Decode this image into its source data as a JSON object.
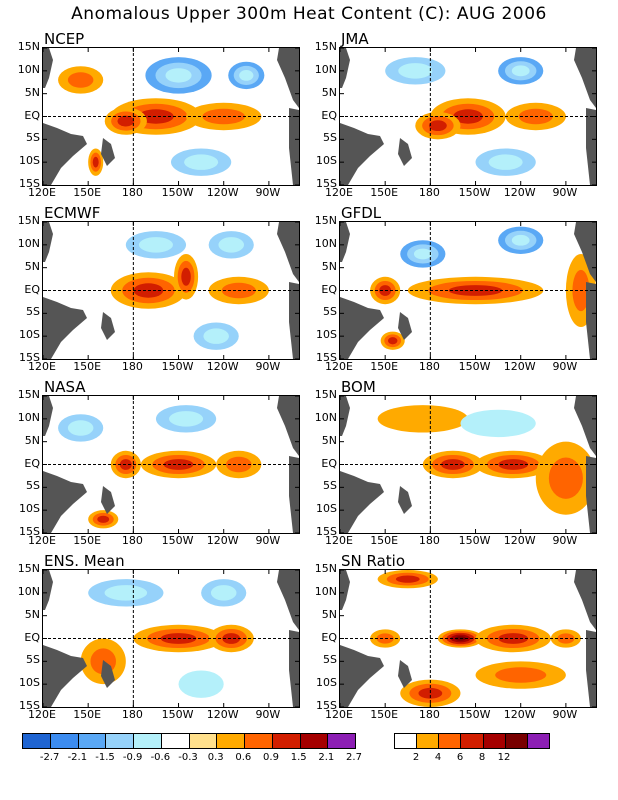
{
  "title": "Anomalous Upper 300m Heat Content (C): AUG 2006",
  "lat_labels": [
    "15N",
    "10N",
    "5N",
    "EQ",
    "5S",
    "10S",
    "15S"
  ],
  "lon_labels": [
    "120E",
    "150E",
    "180",
    "150W",
    "120W",
    "90W"
  ],
  "panels": [
    {
      "name": "NCEP",
      "row": 0,
      "col": 0
    },
    {
      "name": "JMA",
      "row": 0,
      "col": 1
    },
    {
      "name": "ECMWF",
      "row": 1,
      "col": 0
    },
    {
      "name": "GFDL",
      "row": 1,
      "col": 1
    },
    {
      "name": "NASA",
      "row": 2,
      "col": 0
    },
    {
      "name": "BOM",
      "row": 2,
      "col": 1
    },
    {
      "name": "ENS. Mean",
      "row": 3,
      "col": 0
    },
    {
      "name": "SN Ratio",
      "row": 3,
      "col": 1
    }
  ],
  "colors": {
    "land": "#555555",
    "anomaly_palette": [
      "#1e64d2",
      "#3c8cf0",
      "#5aa8f5",
      "#96d2fa",
      "#b4f0fa",
      "#ffffff",
      "#ffe08c",
      "#ffaa00",
      "#ff6400",
      "#d21e00",
      "#a50000",
      "#8c1eb4"
    ],
    "sn_palette": [
      "#ffffff",
      "#ffaa00",
      "#ff6400",
      "#d21e00",
      "#a50000",
      "#780000",
      "#8c1eb4"
    ]
  },
  "colorbar_anomaly": {
    "labels": [
      "-2.7",
      "-2.1",
      "-1.5",
      "-0.9",
      "-0.6",
      "-0.3",
      "0.3",
      "0.6",
      "0.9",
      "1.5",
      "2.1",
      "2.7"
    ]
  },
  "colorbar_sn": {
    "labels": [
      "2",
      "4",
      "6",
      "8",
      "12"
    ]
  },
  "chart_data": {
    "type": "heatmap",
    "variable": "Anomalous Upper 300m Heat Content (C)",
    "period": "AUG 2006",
    "lat_range": [
      -15,
      15
    ],
    "lon_range_deg_east": [
      120,
      290
    ],
    "contour_levels": [
      -2.7,
      -2.1,
      -1.5,
      -0.9,
      -0.6,
      -0.3,
      0.3,
      0.6,
      0.9,
      1.5,
      2.1,
      2.7
    ],
    "sn_levels": [
      2,
      4,
      6,
      8,
      12
    ],
    "features": {
      "NCEP": [
        {
          "lon": 195,
          "lat": 0,
          "value": 1.2,
          "rx": 30,
          "ry": 4
        },
        {
          "lon": 175,
          "lat": -1,
          "value": 1.0,
          "rx": 14,
          "ry": 3
        },
        {
          "lon": 240,
          "lat": 0,
          "value": 0.6,
          "rx": 25,
          "ry": 3
        },
        {
          "lon": 155,
          "lat": -10,
          "value": 1.2,
          "rx": 5,
          "ry": 3
        },
        {
          "lon": 210,
          "lat": 9,
          "value": -0.9,
          "rx": 22,
          "ry": 4
        },
        {
          "lon": 255,
          "lat": 9,
          "value": -0.9,
          "rx": 12,
          "ry": 3
        },
        {
          "lon": 145,
          "lat": 8,
          "value": 0.6,
          "rx": 15,
          "ry": 3
        },
        {
          "lon": 225,
          "lat": -10,
          "value": -0.6,
          "rx": 20,
          "ry": 3
        }
      ],
      "JMA": [
        {
          "lon": 205,
          "lat": 0,
          "value": 1.2,
          "rx": 25,
          "ry": 4
        },
        {
          "lon": 185,
          "lat": -2,
          "value": 0.9,
          "rx": 15,
          "ry": 3
        },
        {
          "lon": 250,
          "lat": 0,
          "value": 0.6,
          "rx": 20,
          "ry": 3
        },
        {
          "lon": 170,
          "lat": 10,
          "value": -0.6,
          "rx": 20,
          "ry": 3
        },
        {
          "lon": 240,
          "lat": 10,
          "value": -0.9,
          "rx": 15,
          "ry": 3
        },
        {
          "lon": 230,
          "lat": -10,
          "value": -0.6,
          "rx": 20,
          "ry": 3
        }
      ],
      "ECMWF": [
        {
          "lon": 190,
          "lat": 0,
          "value": 1.2,
          "rx": 25,
          "ry": 4
        },
        {
          "lon": 215,
          "lat": 3,
          "value": 0.9,
          "rx": 8,
          "ry": 5
        },
        {
          "lon": 250,
          "lat": 0,
          "value": 0.6,
          "rx": 20,
          "ry": 3
        },
        {
          "lon": 195,
          "lat": 10,
          "value": -0.6,
          "rx": 20,
          "ry": 3
        },
        {
          "lon": 245,
          "lat": 10,
          "value": -0.6,
          "rx": 15,
          "ry": 3
        },
        {
          "lon": 235,
          "lat": -10,
          "value": -0.6,
          "rx": 15,
          "ry": 3
        }
      ],
      "GFDL": [
        {
          "lon": 210,
          "lat": 0,
          "value": 1.2,
          "rx": 45,
          "ry": 3
        },
        {
          "lon": 150,
          "lat": 0,
          "value": 0.9,
          "rx": 10,
          "ry": 3
        },
        {
          "lon": 155,
          "lat": -11,
          "value": 1.2,
          "rx": 8,
          "ry": 2
        },
        {
          "lon": 175,
          "lat": 8,
          "value": -0.9,
          "rx": 15,
          "ry": 3
        },
        {
          "lon": 240,
          "lat": 11,
          "value": -0.9,
          "rx": 15,
          "ry": 3
        },
        {
          "lon": 280,
          "lat": 0,
          "value": 0.6,
          "rx": 10,
          "ry": 8
        }
      ],
      "NASA": [
        {
          "lon": 210,
          "lat": 0,
          "value": 1.2,
          "rx": 25,
          "ry": 3
        },
        {
          "lon": 175,
          "lat": 0,
          "value": 0.9,
          "rx": 10,
          "ry": 3
        },
        {
          "lon": 160,
          "lat": -12,
          "value": 0.9,
          "rx": 10,
          "ry": 2
        },
        {
          "lon": 145,
          "lat": 8,
          "value": -0.6,
          "rx": 15,
          "ry": 3
        },
        {
          "lon": 215,
          "lat": 10,
          "value": -0.6,
          "rx": 20,
          "ry": 3
        },
        {
          "lon": 250,
          "lat": 0,
          "value": 0.6,
          "rx": 15,
          "ry": 3
        }
      ],
      "BOM": [
        {
          "lon": 195,
          "lat": 0,
          "value": 1.2,
          "rx": 20,
          "ry": 3
        },
        {
          "lon": 235,
          "lat": 0,
          "value": 0.9,
          "rx": 25,
          "ry": 3
        },
        {
          "lon": 270,
          "lat": -3,
          "value": 0.6,
          "rx": 20,
          "ry": 8
        },
        {
          "lon": 175,
          "lat": 10,
          "value": 0.3,
          "rx": 30,
          "ry": 3
        },
        {
          "lon": 225,
          "lat": 9,
          "value": -0.3,
          "rx": 25,
          "ry": 3
        }
      ],
      "ENS. Mean": [
        {
          "lon": 210,
          "lat": 0,
          "value": 1.2,
          "rx": 30,
          "ry": 3
        },
        {
          "lon": 245,
          "lat": 0,
          "value": 0.9,
          "rx": 15,
          "ry": 3
        },
        {
          "lon": 160,
          "lat": -5,
          "value": 0.6,
          "rx": 15,
          "ry": 5
        },
        {
          "lon": 175,
          "lat": 10,
          "value": -0.6,
          "rx": 25,
          "ry": 3
        },
        {
          "lon": 240,
          "lat": 10,
          "value": -0.6,
          "rx": 15,
          "ry": 3
        },
        {
          "lon": 225,
          "lat": -10,
          "value": -0.3,
          "rx": 15,
          "ry": 3
        }
      ],
      "SN Ratio": [
        {
          "lon": 200,
          "lat": 0,
          "value": 12,
          "rx": 15,
          "ry": 2
        },
        {
          "lon": 235,
          "lat": 0,
          "value": 6,
          "rx": 25,
          "ry": 3
        },
        {
          "lon": 270,
          "lat": 0,
          "value": 4,
          "rx": 10,
          "ry": 2
        },
        {
          "lon": 165,
          "lat": 13,
          "value": 6,
          "rx": 20,
          "ry": 2
        },
        {
          "lon": 180,
          "lat": -12,
          "value": 6,
          "rx": 20,
          "ry": 3
        },
        {
          "lon": 240,
          "lat": -8,
          "value": 4,
          "rx": 30,
          "ry": 3
        },
        {
          "lon": 150,
          "lat": 0,
          "value": 4,
          "rx": 10,
          "ry": 2
        }
      ]
    }
  }
}
